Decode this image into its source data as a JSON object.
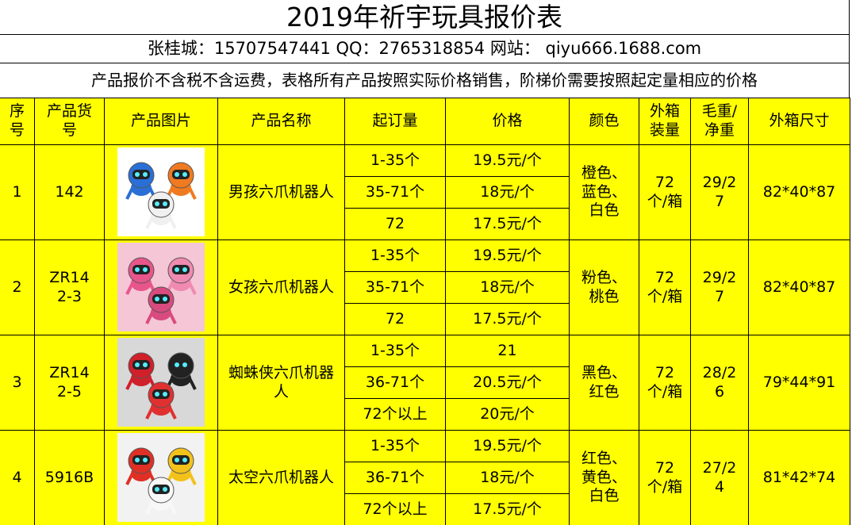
{
  "title": "2019年祈宇玩具报价表",
  "contact": "张桂城：15707547441 QQ：2765318854 网站： qiyu666.1688.com",
  "note": "产品报价不含税不含运费，表格所有产品按照实际价格销售，阶梯价需要按照起定量相应的价格",
  "table": {
    "headers": [
      "序号",
      "产品货号",
      "产品图片",
      "产品名称",
      "起订量",
      "价格",
      "颜色",
      "外箱装量",
      "毛重/净重",
      "外箱尺寸"
    ],
    "rows": [
      {
        "no": "1",
        "code": "142",
        "name": "男孩六爪机器人",
        "tiers": [
          {
            "qty": "1-35个",
            "price": "19.5元/个"
          },
          {
            "qty": "35-71个",
            "price": "18元/个"
          },
          {
            "qty": "72",
            "price": "17.5元/个"
          }
        ],
        "colors": "橙色、蓝色、白色",
        "pack": "72个/箱",
        "weight": "29/27",
        "size": "82*40*87"
      },
      {
        "no": "2",
        "code": "ZR142-3",
        "name": "女孩六爪机器人",
        "tiers": [
          {
            "qty": "1-35个",
            "price": "19.5元/个"
          },
          {
            "qty": "35-71个",
            "price": "18元/个"
          },
          {
            "qty": "72",
            "price": "17.5元/个"
          }
        ],
        "colors": "粉色、桃色",
        "pack": "72个/箱",
        "weight": "29/27",
        "size": "82*40*87"
      },
      {
        "no": "3",
        "code": "ZR142-5",
        "name": "蜘蛛侠六爪机器人",
        "tiers": [
          {
            "qty": "1-35个",
            "price": "21"
          },
          {
            "qty": "36-71个",
            "price": "20.5元/个"
          },
          {
            "qty": "72个以上",
            "price": "20元/个"
          }
        ],
        "colors": "黑色、红色",
        "pack": "72个/箱",
        "weight": "28/26",
        "size": "79*44*91"
      },
      {
        "no": "4",
        "code": "5916B",
        "name": "太空六爪机器人",
        "tiers": [
          {
            "qty": "1-35个",
            "price": "19.5元/个"
          },
          {
            "qty": "36-71个",
            "price": "18元/个"
          },
          {
            "qty": "72个以上",
            "price": "17.5元/个"
          }
        ],
        "colors": "红色、黄色、白色",
        "pack": "72个/箱",
        "weight": "27/24",
        "size": "81*42*74"
      }
    ]
  }
}
